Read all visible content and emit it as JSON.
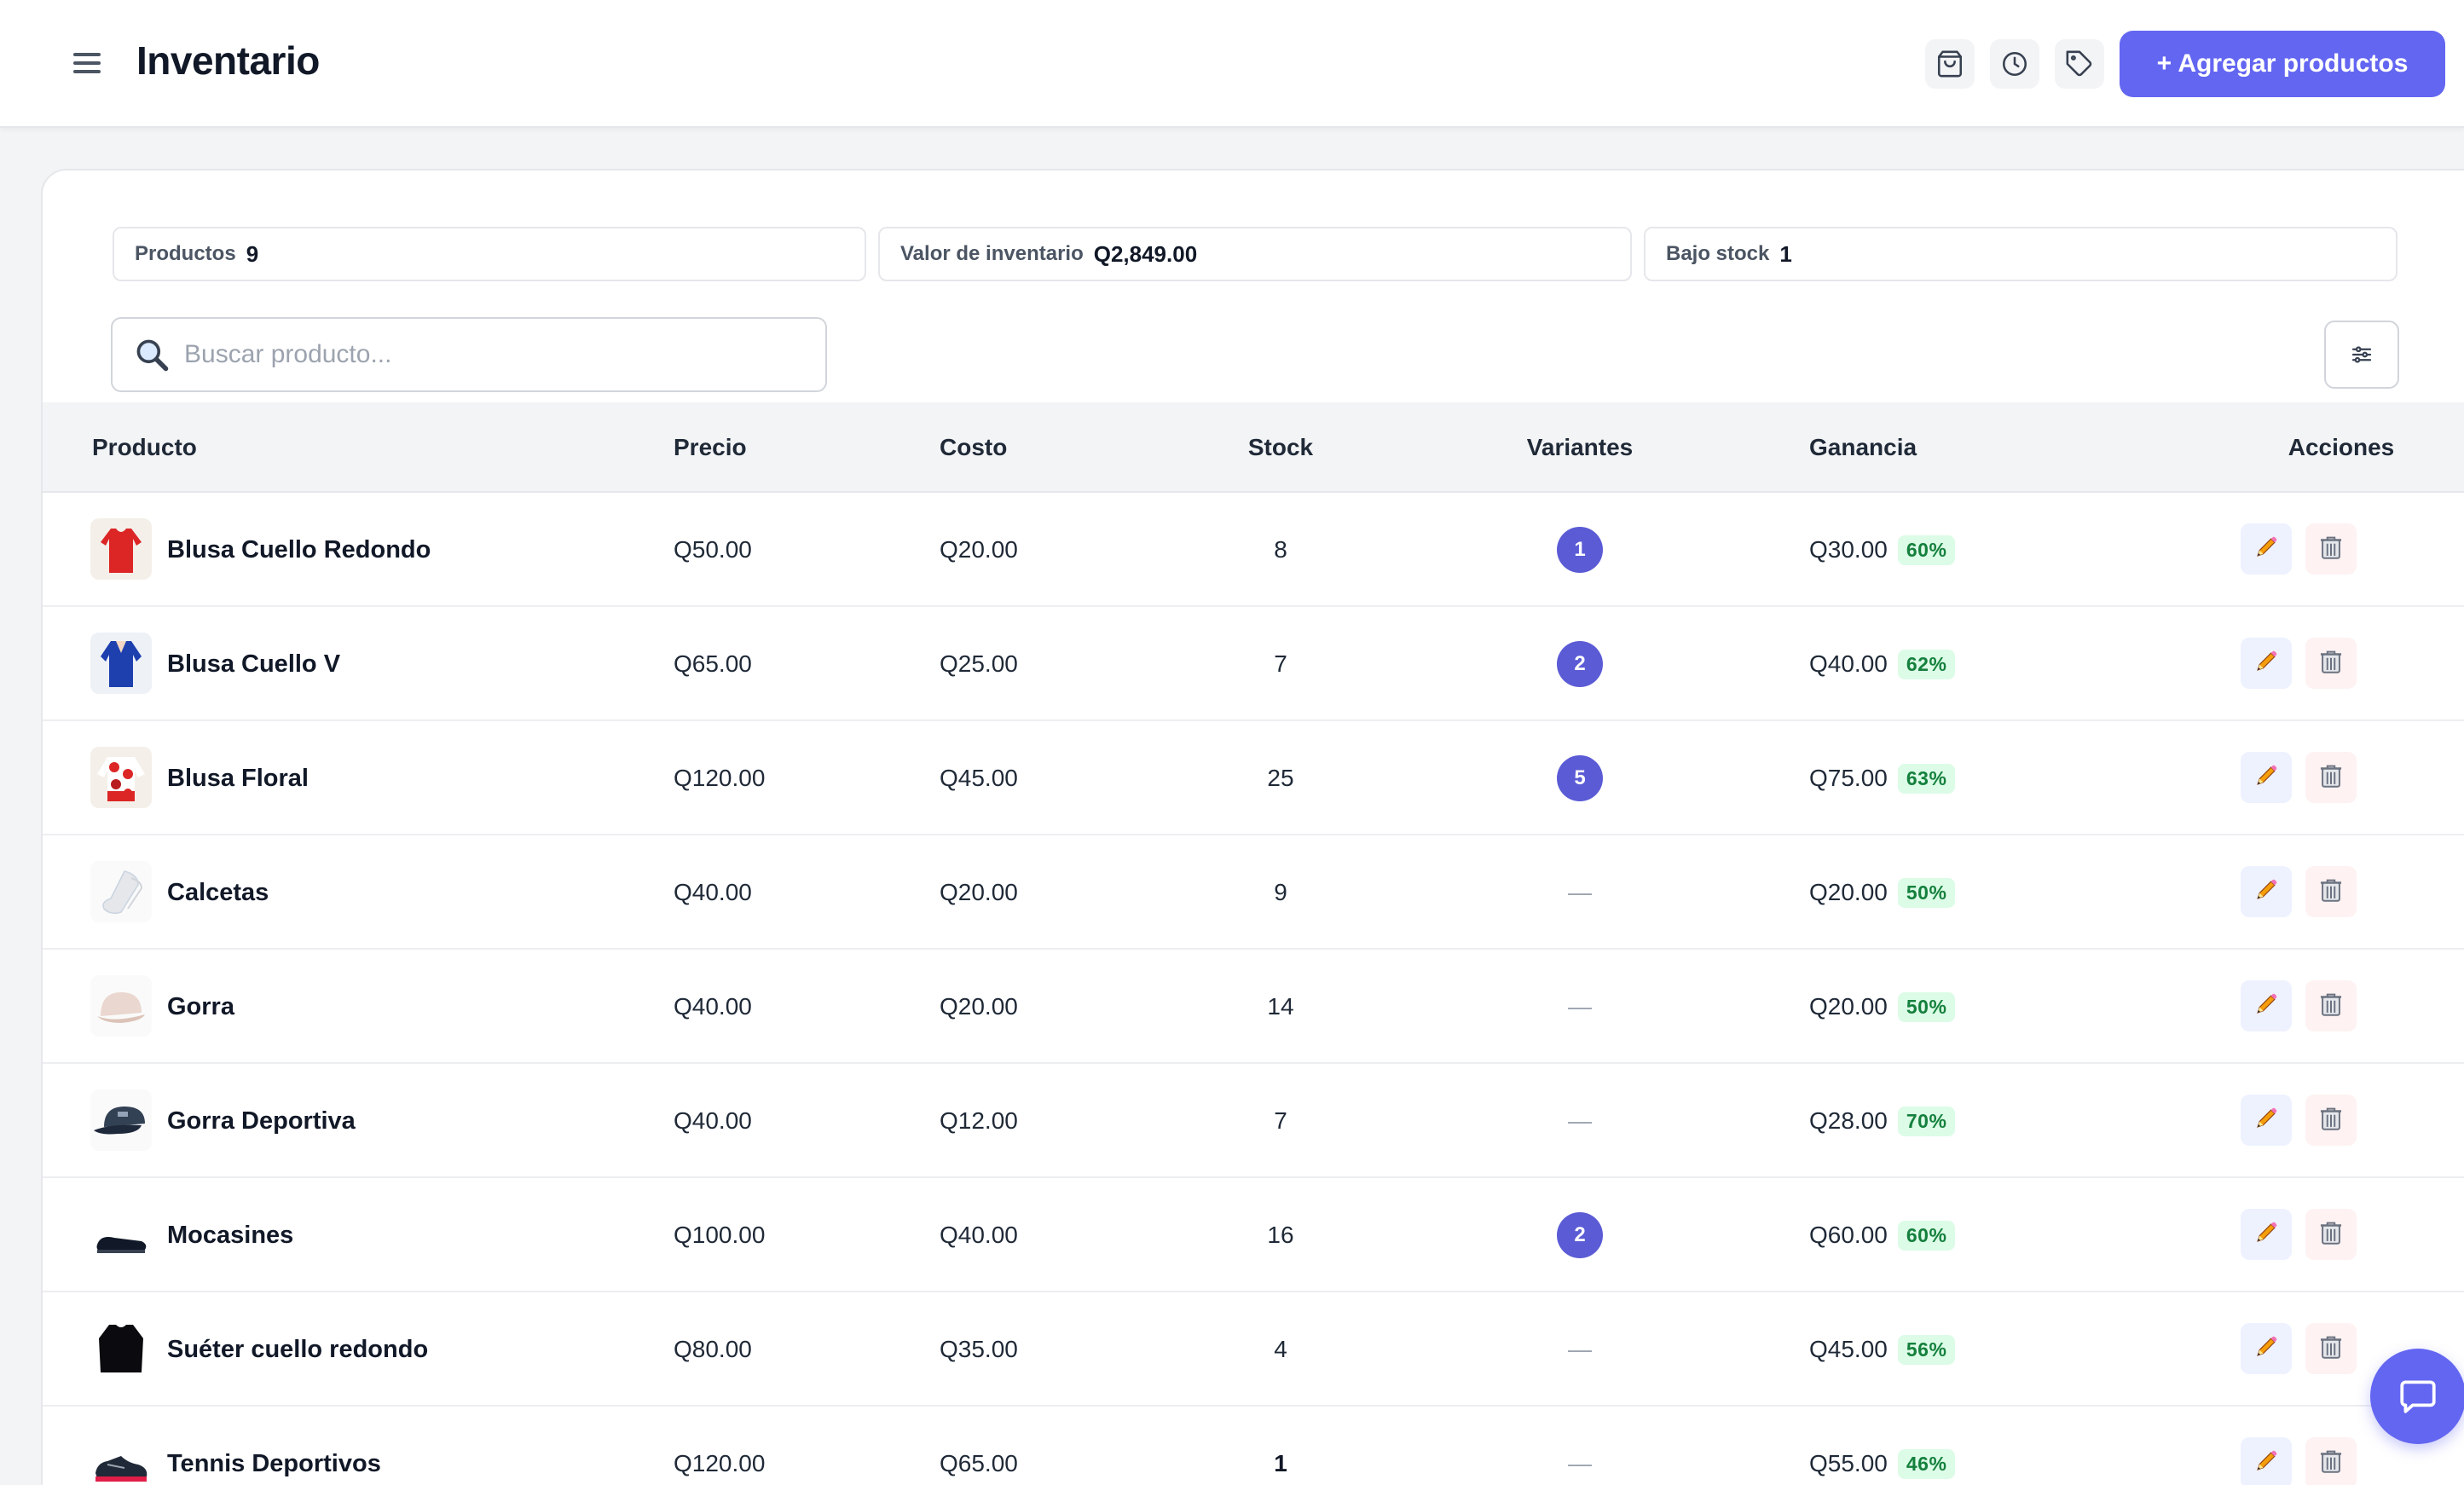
{
  "header": {
    "title": "Inventario",
    "add_button_label": "+ Agregar productos",
    "icons": [
      "shopping-bag-icon",
      "clock-icon",
      "tag-icon"
    ]
  },
  "stats": {
    "products_label": "Productos",
    "products_value": "9",
    "inventory_label": "Valor de inventario",
    "inventory_value": "Q2,849.00",
    "low_stock_label": "Bajo stock",
    "low_stock_value": "1"
  },
  "search": {
    "placeholder": "Buscar producto...",
    "value": ""
  },
  "table": {
    "columns": [
      "Producto",
      "Precio",
      "Costo",
      "Stock",
      "Variantes",
      "Ganancia",
      "Acciones"
    ],
    "rows": [
      {
        "name": "Blusa Cuello Redondo",
        "price": "Q50.00",
        "cost": "Q20.00",
        "stock": "8",
        "variants": "1",
        "gain": "Q30.00",
        "pct": "60%",
        "thumb": "red-blouse"
      },
      {
        "name": "Blusa Cuello V",
        "price": "Q65.00",
        "cost": "Q25.00",
        "stock": "7",
        "variants": "2",
        "gain": "Q40.00",
        "pct": "62%",
        "thumb": "blue-blouse"
      },
      {
        "name": "Blusa Floral",
        "price": "Q120.00",
        "cost": "Q45.00",
        "stock": "25",
        "variants": "5",
        "gain": "Q75.00",
        "pct": "63%",
        "thumb": "floral-blouse"
      },
      {
        "name": "Calcetas",
        "price": "Q40.00",
        "cost": "Q20.00",
        "stock": "9",
        "variants": "—",
        "gain": "Q20.00",
        "pct": "50%",
        "thumb": "socks"
      },
      {
        "name": "Gorra",
        "price": "Q40.00",
        "cost": "Q20.00",
        "stock": "14",
        "variants": "—",
        "gain": "Q20.00",
        "pct": "50%",
        "thumb": "beige-cap"
      },
      {
        "name": "Gorra Deportiva",
        "price": "Q40.00",
        "cost": "Q12.00",
        "stock": "7",
        "variants": "—",
        "gain": "Q28.00",
        "pct": "70%",
        "thumb": "navy-cap"
      },
      {
        "name": "Mocasines",
        "price": "Q100.00",
        "cost": "Q40.00",
        "stock": "16",
        "variants": "2",
        "gain": "Q60.00",
        "pct": "60%",
        "thumb": "loafers"
      },
      {
        "name": "Suéter cuello redondo",
        "price": "Q80.00",
        "cost": "Q35.00",
        "stock": "4",
        "variants": "—",
        "gain": "Q45.00",
        "pct": "56%",
        "thumb": "black-sweater"
      },
      {
        "name": "Tennis Deportivos",
        "price": "Q120.00",
        "cost": "Q65.00",
        "stock": "1",
        "variants": "—",
        "gain": "Q55.00",
        "pct": "46%",
        "thumb": "sneakers",
        "low_stock": true
      }
    ]
  },
  "colors": {
    "accent": "#6366f1",
    "badge": "#5b5bd6",
    "gain_bg": "#dcfce7",
    "gain_text": "#15803d"
  }
}
